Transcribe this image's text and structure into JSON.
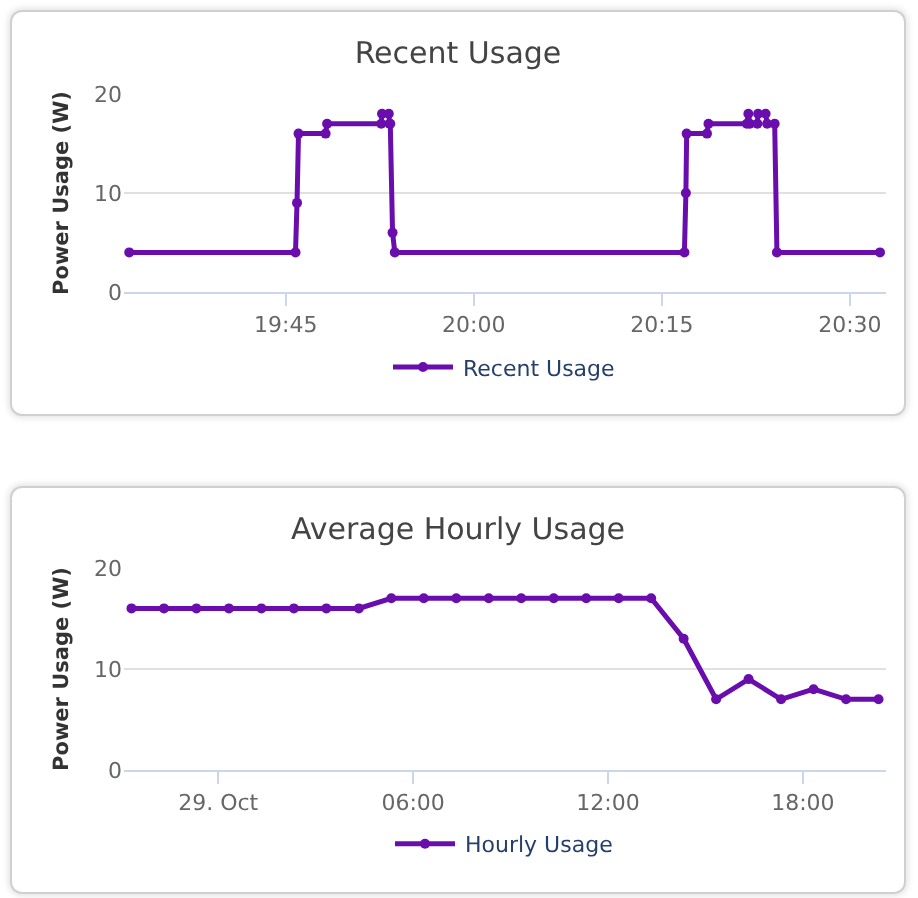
{
  "chart_data": [
    {
      "type": "line",
      "title": "Recent Usage",
      "ylabel": "Power Usage (W)",
      "x": [
        19.542,
        19.763,
        19.765,
        19.767,
        19.803,
        19.805,
        19.877,
        19.878,
        19.887,
        19.888,
        19.889,
        19.892,
        19.895,
        20.28,
        20.282,
        20.283,
        20.31,
        20.312,
        20.363,
        20.365,
        20.367,
        20.377,
        20.378,
        20.388,
        20.39,
        20.4,
        20.403,
        20.54
      ],
      "series": [
        {
          "name": "Recent Usage",
          "color": "#6a0dad",
          "values": [
            4,
            4,
            9,
            16,
            16,
            17,
            17,
            18,
            18,
            17,
            17,
            6,
            4,
            4,
            10,
            16,
            16,
            17,
            17,
            18,
            17,
            17,
            18,
            18,
            17,
            17,
            4,
            4
          ]
        }
      ],
      "xlim": [
        19.535,
        20.548
      ],
      "xticks": [
        {
          "value": 19.75,
          "label": "19:45"
        },
        {
          "value": 20,
          "label": "20:00"
        },
        {
          "value": 20.25,
          "label": "20:15"
        },
        {
          "value": 20.5,
          "label": "20:30"
        }
      ],
      "ylim": [
        0,
        20
      ],
      "yticks": [
        0,
        10,
        20
      ],
      "grid": "y",
      "legend": "bottom",
      "marker": "circle"
    },
    {
      "type": "line",
      "title": "Average Hourly Usage",
      "ylabel": "Power Usage (W)",
      "x": [
        -2.67,
        -1.67,
        -0.67,
        0.33,
        1.33,
        2.33,
        3.33,
        4.33,
        5.33,
        6.33,
        7.33,
        8.33,
        9.33,
        10.33,
        11.33,
        12.33,
        13.33,
        14.33,
        15.33,
        16.33,
        17.33,
        18.33,
        19.33,
        20.33
      ],
      "series": [
        {
          "name": "Hourly Usage",
          "color": "#6a0dad",
          "values": [
            16,
            16,
            16,
            16,
            16,
            16,
            16,
            16,
            17,
            17,
            17,
            17,
            17,
            17,
            17,
            17,
            17,
            13,
            7,
            9,
            7,
            8,
            7,
            7
          ]
        }
      ],
      "xlim": [
        -2.9,
        20.56
      ],
      "xticks": [
        {
          "value": 0,
          "label": "29. Oct"
        },
        {
          "value": 6,
          "label": "06:00"
        },
        {
          "value": 12,
          "label": "12:00"
        },
        {
          "value": 18,
          "label": "18:00"
        }
      ],
      "ylim": [
        0,
        20
      ],
      "yticks": [
        0,
        10,
        20
      ],
      "grid": "y",
      "legend": "bottom",
      "marker": "circle"
    }
  ]
}
